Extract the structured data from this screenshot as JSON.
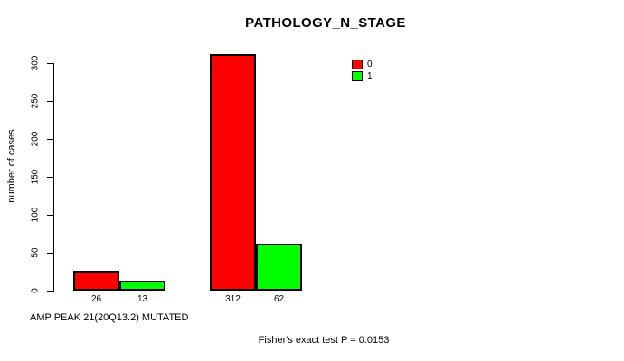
{
  "chart_data": {
    "type": "bar",
    "title": "PATHOLOGY_N_STAGE",
    "ylabel": "number of cases",
    "xlabel": "AMP PEAK 21(20Q13.2) MUTATED",
    "annotation": "Fisher's exact test P = 0.0153",
    "series": [
      {
        "name": "0",
        "color": "#ff0000",
        "values": [
          26,
          312
        ]
      },
      {
        "name": "1",
        "color": "#00ff00",
        "values": [
          13,
          62
        ]
      }
    ],
    "bar_value_labels": [
      "26",
      "13",
      "312",
      "62"
    ],
    "yticks": [
      0,
      50,
      100,
      150,
      200,
      250,
      300
    ],
    "ylim": [
      0,
      300
    ],
    "grid": false,
    "legend_position": "top-right",
    "colors": {
      "bar_outline": "#000000",
      "text": "#000000",
      "background": "#ffffff"
    }
  }
}
